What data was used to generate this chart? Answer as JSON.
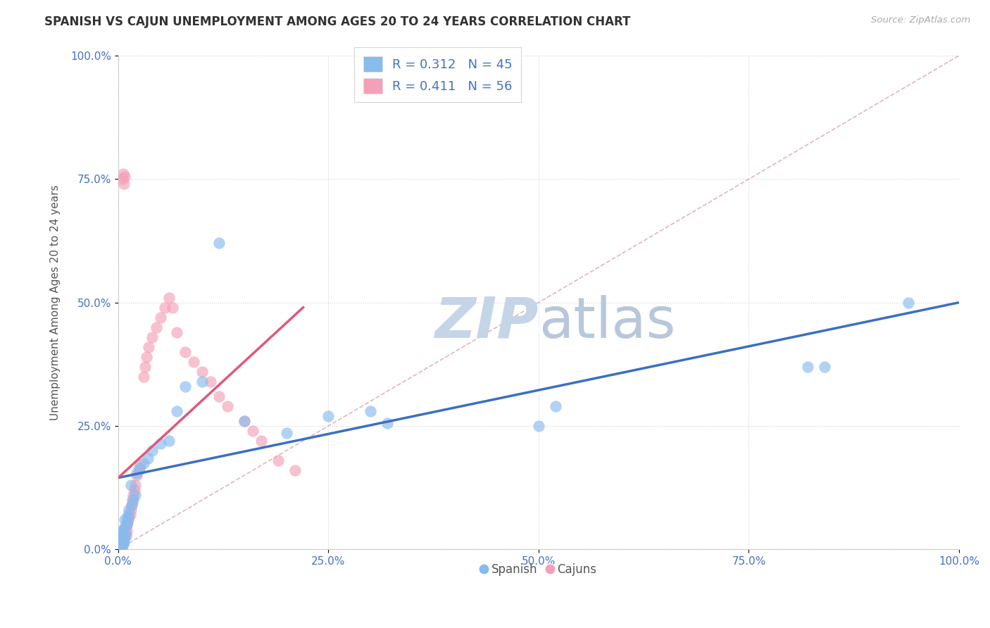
{
  "title": "SPANISH VS CAJUN UNEMPLOYMENT AMONG AGES 20 TO 24 YEARS CORRELATION CHART",
  "source": "Source: ZipAtlas.com",
  "ylabel": "Unemployment Among Ages 20 to 24 years",
  "xlim": [
    0.0,
    1.0
  ],
  "ylim": [
    0.0,
    1.0
  ],
  "xticks": [
    0.0,
    0.25,
    0.5,
    0.75,
    1.0
  ],
  "yticks": [
    0.0,
    0.25,
    0.5,
    0.75,
    1.0
  ],
  "xticklabels": [
    "0.0%",
    "25.0%",
    "50.0%",
    "75.0%",
    "100.0%"
  ],
  "yticklabels": [
    "0.0%",
    "25.0%",
    "50.0%",
    "75.0%",
    "100.0%"
  ],
  "spanish_color": "#88bbee",
  "cajun_color": "#f4a0b8",
  "background_color": "#ffffff",
  "grid_color": "#cccccc",
  "watermark_text": "ZIPatlas",
  "watermark_color": "#cdd8e8",
  "spanish_line_color": "#3a6fc4",
  "cajun_line_color": "#e05878",
  "diag_line_color": "#e0a0b0",
  "title_color": "#333333",
  "source_color": "#aaaaaa",
  "tick_color": "#4472c4",
  "legend_text_color": "#4472c4",
  "spanish_points_x": [
    0.003,
    0.004,
    0.005,
    0.006,
    0.004,
    0.003,
    0.005,
    0.006,
    0.007,
    0.005,
    0.006,
    0.007,
    0.008,
    0.009,
    0.01,
    0.008,
    0.01,
    0.011,
    0.012,
    0.013,
    0.015,
    0.016,
    0.018,
    0.02,
    0.022,
    0.025,
    0.03,
    0.035,
    0.04,
    0.05,
    0.06,
    0.07,
    0.08,
    0.1,
    0.12,
    0.15,
    0.2,
    0.25,
    0.3,
    0.32,
    0.5,
    0.52,
    0.82,
    0.84,
    0.94
  ],
  "spanish_points_y": [
    0.01,
    0.005,
    0.008,
    0.012,
    0.02,
    0.025,
    0.018,
    0.03,
    0.015,
    0.035,
    0.04,
    0.022,
    0.045,
    0.028,
    0.05,
    0.06,
    0.055,
    0.065,
    0.07,
    0.08,
    0.13,
    0.09,
    0.1,
    0.11,
    0.155,
    0.165,
    0.175,
    0.185,
    0.2,
    0.215,
    0.22,
    0.28,
    0.33,
    0.34,
    0.62,
    0.26,
    0.235,
    0.27,
    0.28,
    0.255,
    0.25,
    0.29,
    0.37,
    0.37,
    0.5
  ],
  "cajun_points_x": [
    0.002,
    0.003,
    0.003,
    0.004,
    0.004,
    0.005,
    0.005,
    0.006,
    0.006,
    0.007,
    0.007,
    0.008,
    0.008,
    0.009,
    0.009,
    0.01,
    0.01,
    0.011,
    0.012,
    0.013,
    0.014,
    0.015,
    0.016,
    0.017,
    0.018,
    0.019,
    0.02,
    0.022,
    0.024,
    0.026,
    0.03,
    0.032,
    0.034,
    0.036,
    0.04,
    0.045,
    0.05,
    0.055,
    0.06,
    0.065,
    0.07,
    0.08,
    0.09,
    0.1,
    0.11,
    0.12,
    0.13,
    0.15,
    0.16,
    0.17,
    0.19,
    0.21,
    0.005,
    0.006,
    0.007,
    0.008
  ],
  "cajun_points_y": [
    0.005,
    0.01,
    0.015,
    0.008,
    0.02,
    0.012,
    0.025,
    0.018,
    0.03,
    0.022,
    0.035,
    0.028,
    0.04,
    0.032,
    0.045,
    0.038,
    0.05,
    0.055,
    0.06,
    0.065,
    0.07,
    0.08,
    0.09,
    0.1,
    0.11,
    0.12,
    0.13,
    0.15,
    0.16,
    0.17,
    0.35,
    0.37,
    0.39,
    0.41,
    0.43,
    0.45,
    0.47,
    0.49,
    0.51,
    0.49,
    0.44,
    0.4,
    0.38,
    0.36,
    0.34,
    0.31,
    0.29,
    0.26,
    0.24,
    0.22,
    0.18,
    0.16,
    0.75,
    0.76,
    0.74,
    0.755
  ],
  "spanish_line_x0": 0.0,
  "spanish_line_x1": 1.0,
  "spanish_line_y0": 0.145,
  "spanish_line_y1": 0.5,
  "cajun_line_x0": 0.0,
  "cajun_line_x1": 0.22,
  "cajun_line_y0": 0.145,
  "cajun_line_y1": 0.49
}
